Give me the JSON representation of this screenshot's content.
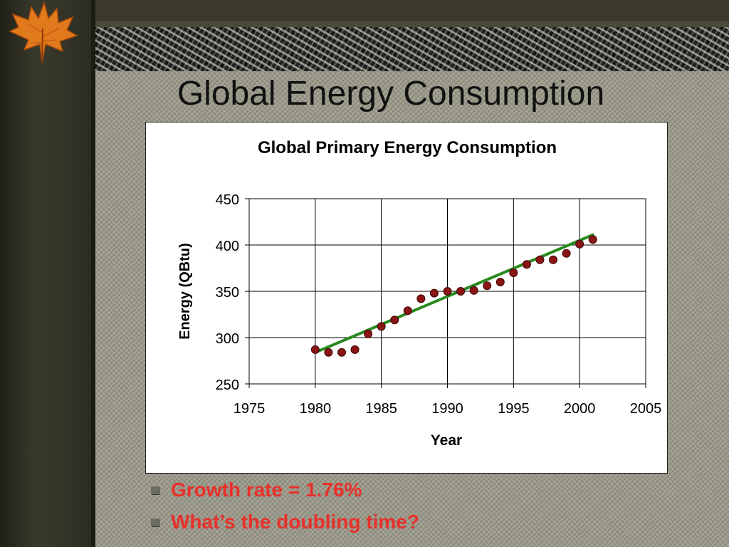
{
  "slide": {
    "title": "Global Energy Consumption",
    "bullets": [
      "Growth rate = 1.76%",
      "What’s the doubling time?"
    ]
  },
  "colors": {
    "bullet_text": "#e8302a",
    "trend_line": "#2a8a1e",
    "marker_fill": "#8b1414",
    "background_panel": "#9b9a8a"
  },
  "icons": {
    "logo": "maple-leaf-icon",
    "bullet": "square-bullet-icon"
  },
  "chart_data": {
    "type": "scatter",
    "title": "Global Primary Energy Consumption",
    "xlabel": "Year",
    "ylabel": "Energy (QBtu)",
    "xlim": [
      1975,
      2005
    ],
    "ylim": [
      250,
      450
    ],
    "xticks": [
      1975,
      1980,
      1985,
      1990,
      1995,
      2000,
      2005
    ],
    "yticks": [
      250,
      300,
      350,
      400,
      450
    ],
    "grid": true,
    "legend": "none",
    "series": [
      {
        "type": "scatter",
        "x": [
          1980,
          1981,
          1982,
          1983,
          1984,
          1985,
          1986,
          1987,
          1988,
          1989,
          1990,
          1991,
          1992,
          1993,
          1994,
          1995,
          1996,
          1997,
          1998,
          1999,
          2000,
          2001
        ],
        "y": [
          287,
          284,
          284,
          287,
          304,
          312,
          319,
          329,
          342,
          348,
          350,
          350,
          351,
          356,
          360,
          370,
          379,
          384,
          384,
          391,
          401,
          406
        ]
      },
      {
        "type": "trendline",
        "x": [
          1980,
          2001
        ],
        "y": [
          284,
          411
        ]
      }
    ]
  }
}
